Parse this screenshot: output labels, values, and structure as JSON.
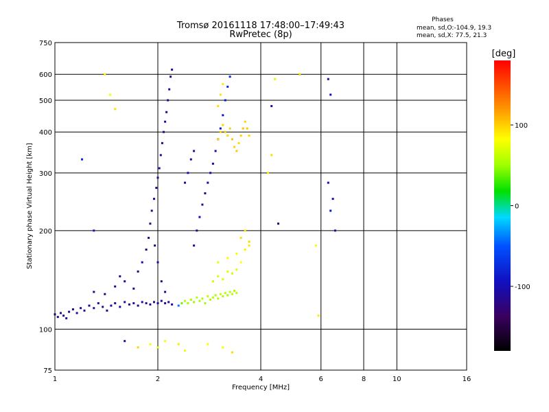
{
  "chart_data": {
    "type": "scatter",
    "title": "Tromsø 20161118 17:48:00–17:49:43",
    "subtitle": "RwPretec (8p)",
    "xlabel": "Frequency [MHz]",
    "ylabel": "Stationary phase Virtual Height [km]",
    "x_scale": "log",
    "y_scale": "log",
    "xlim": [
      1,
      16
    ],
    "ylim": [
      75,
      750
    ],
    "x_ticks": [
      1,
      2,
      4,
      6,
      8,
      10,
      16
    ],
    "x_tick_labels": [
      "1",
      "2",
      "4",
      "6",
      "8",
      "10",
      "16"
    ],
    "y_ticks": [
      75,
      100,
      200,
      300,
      400,
      500,
      600,
      750
    ],
    "y_tick_labels": [
      "75",
      "100",
      "200",
      "300",
      "400",
      "500",
      "600",
      "750"
    ],
    "grid": true,
    "phase_stats": {
      "heading": "Phases",
      "o_line": "mean, sd,O:-104.9, 19.3",
      "x_line": "mean, sd,X:  77.5, 21.3"
    },
    "colorbar": {
      "label": "[deg]",
      "range": [
        -180,
        180
      ],
      "ticks": [
        100,
        0,
        -100
      ],
      "tick_labels": [
        "100",
        "0",
        "-100"
      ]
    },
    "series": [
      {
        "values": [
          [
            1.0,
            111,
            -110
          ],
          [
            1.02,
            109,
            -112
          ],
          [
            1.04,
            112,
            -108
          ],
          [
            1.06,
            110,
            -115
          ],
          [
            1.08,
            108,
            -105
          ],
          [
            1.1,
            113,
            -110
          ],
          [
            1.13,
            115,
            -118
          ],
          [
            1.16,
            112,
            -108
          ],
          [
            1.19,
            116,
            -112
          ],
          [
            1.22,
            114,
            -106
          ],
          [
            1.26,
            118,
            -115
          ],
          [
            1.3,
            116,
            -108
          ],
          [
            1.34,
            120,
            -112
          ],
          [
            1.38,
            117,
            -118
          ],
          [
            1.42,
            114,
            -110
          ],
          [
            1.46,
            118,
            -105
          ],
          [
            1.5,
            120,
            -116
          ],
          [
            1.55,
            117,
            -108
          ],
          [
            1.6,
            121,
            -112
          ],
          [
            1.65,
            119,
            -115
          ],
          [
            1.7,
            120,
            -110
          ],
          [
            1.75,
            118,
            -118
          ],
          [
            1.8,
            121,
            -106
          ],
          [
            1.85,
            120,
            -112
          ],
          [
            1.9,
            119,
            -110
          ],
          [
            1.95,
            121,
            -115
          ],
          [
            2.0,
            120,
            -108
          ],
          [
            2.05,
            122,
            -112
          ],
          [
            2.1,
            120,
            -110
          ],
          [
            2.15,
            121,
            -116
          ],
          [
            2.2,
            119,
            -105
          ]
        ]
      },
      {
        "values": [
          [
            1.3,
            130,
            -120
          ],
          [
            1.4,
            128,
            -115
          ],
          [
            1.5,
            135,
            -122
          ],
          [
            1.55,
            145,
            -118
          ],
          [
            1.6,
            140,
            -110
          ],
          [
            1.7,
            133,
            -125
          ],
          [
            1.75,
            150,
            -120
          ],
          [
            1.8,
            160,
            -110
          ],
          [
            1.85,
            175,
            -118
          ],
          [
            1.88,
            190,
            -125
          ],
          [
            1.9,
            210,
            -115
          ],
          [
            1.92,
            230,
            -120
          ],
          [
            1.95,
            250,
            -110
          ],
          [
            1.98,
            270,
            -118
          ],
          [
            2.0,
            290,
            -112
          ],
          [
            2.02,
            310,
            -108
          ],
          [
            2.04,
            340,
            -115
          ],
          [
            2.06,
            370,
            -110
          ],
          [
            2.08,
            400,
            -120
          ],
          [
            2.1,
            430,
            -108
          ],
          [
            2.12,
            460,
            -112
          ],
          [
            2.14,
            500,
            -115
          ],
          [
            2.16,
            540,
            -110
          ],
          [
            2.18,
            590,
            -118
          ],
          [
            2.2,
            620,
            -106
          ],
          [
            1.96,
            180,
            -122
          ],
          [
            2.0,
            160,
            -110
          ],
          [
            2.05,
            140,
            -118
          ],
          [
            2.1,
            130,
            -112
          ]
        ]
      },
      {
        "values": [
          [
            2.3,
            118,
            -40
          ],
          [
            2.35,
            120,
            40
          ],
          [
            2.4,
            122,
            60
          ],
          [
            2.45,
            120,
            50
          ],
          [
            2.5,
            123,
            55
          ],
          [
            2.55,
            121,
            48
          ],
          [
            2.6,
            125,
            58
          ],
          [
            2.65,
            122,
            52
          ],
          [
            2.7,
            124,
            56
          ],
          [
            2.75,
            120,
            50
          ],
          [
            2.8,
            126,
            60
          ],
          [
            2.85,
            123,
            54
          ],
          [
            2.9,
            125,
            58
          ],
          [
            2.95,
            127,
            52
          ],
          [
            3.0,
            124,
            56
          ],
          [
            3.05,
            128,
            60
          ],
          [
            3.1,
            126,
            54
          ],
          [
            3.15,
            129,
            58
          ],
          [
            3.2,
            127,
            52
          ],
          [
            3.25,
            130,
            56
          ],
          [
            3.3,
            128,
            60
          ],
          [
            3.35,
            131,
            55
          ],
          [
            3.4,
            129,
            58
          ]
        ]
      },
      {
        "values": [
          [
            2.9,
            140,
            65
          ],
          [
            3.0,
            145,
            70
          ],
          [
            3.1,
            142,
            68
          ],
          [
            3.2,
            150,
            72
          ],
          [
            3.3,
            148,
            66
          ],
          [
            3.4,
            152,
            70
          ],
          [
            3.0,
            160,
            75
          ],
          [
            3.2,
            165,
            80
          ],
          [
            3.4,
            170,
            78
          ],
          [
            3.5,
            160,
            82
          ],
          [
            3.6,
            175,
            88
          ],
          [
            3.7,
            180,
            90
          ],
          [
            3.5,
            190,
            95
          ],
          [
            3.6,
            200,
            92
          ],
          [
            3.7,
            185,
            98
          ]
        ]
      },
      {
        "values": [
          [
            2.55,
            180,
            -105
          ],
          [
            2.6,
            200,
            -110
          ],
          [
            2.65,
            220,
            -100
          ],
          [
            2.7,
            240,
            -115
          ],
          [
            2.75,
            260,
            -108
          ],
          [
            2.8,
            280,
            -112
          ],
          [
            2.85,
            300,
            -105
          ],
          [
            2.9,
            320,
            -110
          ],
          [
            2.95,
            350,
            -100
          ],
          [
            3.0,
            380,
            -108
          ],
          [
            3.05,
            410,
            -95
          ],
          [
            3.1,
            450,
            -90
          ],
          [
            3.15,
            500,
            -85
          ],
          [
            3.2,
            550,
            -80
          ],
          [
            3.25,
            590,
            -75
          ],
          [
            2.4,
            280,
            -110
          ],
          [
            2.45,
            300,
            -105
          ],
          [
            2.5,
            330,
            -112
          ],
          [
            2.55,
            350,
            -108
          ]
        ]
      },
      {
        "values": [
          [
            3.0,
            380,
            95
          ],
          [
            3.05,
            400,
            100
          ],
          [
            3.1,
            420,
            98
          ],
          [
            3.15,
            400,
            102
          ],
          [
            3.2,
            390,
            96
          ],
          [
            3.25,
            410,
            100
          ],
          [
            3.3,
            380,
            105
          ],
          [
            3.35,
            360,
            98
          ],
          [
            3.4,
            350,
            102
          ],
          [
            3.45,
            370,
            96
          ],
          [
            3.5,
            390,
            100
          ],
          [
            3.55,
            410,
            104
          ],
          [
            3.6,
            430,
            98
          ],
          [
            3.65,
            410,
            102
          ],
          [
            3.7,
            390,
            96
          ],
          [
            3.0,
            480,
            95
          ],
          [
            3.05,
            520,
            92
          ],
          [
            3.1,
            560,
            90
          ]
        ]
      },
      {
        "values": [
          [
            1.4,
            600,
            85
          ],
          [
            1.45,
            520,
            80
          ],
          [
            1.5,
            470,
            95
          ],
          [
            1.2,
            330,
            -80
          ],
          [
            1.3,
            200,
            -90
          ],
          [
            4.2,
            300,
            90
          ],
          [
            4.3,
            340,
            95
          ],
          [
            4.3,
            480,
            -100
          ],
          [
            4.4,
            580,
            70
          ],
          [
            4.5,
            210,
            -120
          ],
          [
            5.2,
            600,
            100
          ],
          [
            5.8,
            180,
            80
          ],
          [
            5.9,
            110,
            90
          ],
          [
            6.3,
            580,
            -110
          ],
          [
            6.4,
            520,
            -95
          ],
          [
            6.3,
            280,
            -105
          ],
          [
            6.5,
            250,
            -100
          ],
          [
            6.4,
            230,
            -90
          ],
          [
            6.6,
            200,
            -110
          ],
          [
            1.9,
            90,
            80
          ],
          [
            2.0,
            88,
            70
          ],
          [
            2.1,
            92,
            85
          ],
          [
            2.3,
            90,
            90
          ],
          [
            2.4,
            86,
            75
          ],
          [
            2.8,
            90,
            85
          ],
          [
            3.1,
            88,
            80
          ],
          [
            3.3,
            85,
            95
          ],
          [
            1.6,
            92,
            -110
          ],
          [
            1.75,
            88,
            100
          ]
        ]
      }
    ]
  }
}
